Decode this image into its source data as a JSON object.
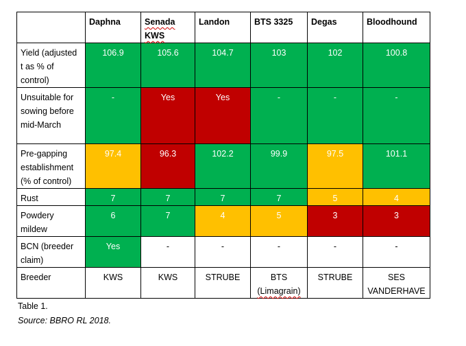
{
  "table": {
    "corner": "",
    "headers": [
      "Daphna",
      "Senada KWS",
      "Landon",
      "BTS 3325",
      "Degas",
      "Bloodhound"
    ],
    "rows": [
      {
        "label": "Yield (adjusted t as % of control)",
        "cells": [
          {
            "v": "106.9",
            "c": "green"
          },
          {
            "v": "105.6",
            "c": "green"
          },
          {
            "v": "104.7",
            "c": "green"
          },
          {
            "v": "103",
            "c": "green"
          },
          {
            "v": "102",
            "c": "green"
          },
          {
            "v": "100.8",
            "c": "green"
          }
        ]
      },
      {
        "label": "Unsuitable for sowing before mid-March",
        "cells": [
          {
            "v": "-",
            "c": "green"
          },
          {
            "v": "Yes",
            "c": "red"
          },
          {
            "v": "Yes",
            "c": "red"
          },
          {
            "v": "-",
            "c": "green"
          },
          {
            "v": "-",
            "c": "green"
          },
          {
            "v": "-",
            "c": "green"
          }
        ]
      },
      {
        "label": "Pre-gapping establishment (% of control)",
        "cells": [
          {
            "v": "97.4",
            "c": "amber"
          },
          {
            "v": "96.3",
            "c": "red"
          },
          {
            "v": "102.2",
            "c": "green"
          },
          {
            "v": "99.9",
            "c": "green"
          },
          {
            "v": "97.5",
            "c": "amber"
          },
          {
            "v": "101.1",
            "c": "green"
          }
        ]
      },
      {
        "label": "Rust",
        "cells": [
          {
            "v": "7",
            "c": "green"
          },
          {
            "v": "7",
            "c": "green"
          },
          {
            "v": "7",
            "c": "green"
          },
          {
            "v": "7",
            "c": "green"
          },
          {
            "v": "5",
            "c": "amber"
          },
          {
            "v": "4",
            "c": "amber"
          }
        ]
      },
      {
        "label": "Powdery mildew",
        "cells": [
          {
            "v": "6",
            "c": "green"
          },
          {
            "v": "7",
            "c": "green"
          },
          {
            "v": "4",
            "c": "amber"
          },
          {
            "v": "5",
            "c": "amber"
          },
          {
            "v": "3",
            "c": "red"
          },
          {
            "v": "3",
            "c": "red"
          }
        ]
      },
      {
        "label": "BCN (breeder claim)",
        "cells": [
          {
            "v": "Yes",
            "c": "green"
          },
          {
            "v": "-",
            "c": "plain"
          },
          {
            "v": "-",
            "c": "plain"
          },
          {
            "v": "-",
            "c": "plain"
          },
          {
            "v": "-",
            "c": "plain"
          },
          {
            "v": "-",
            "c": "plain"
          }
        ]
      },
      {
        "label": "Breeder",
        "cells": [
          {
            "v": "KWS",
            "c": "plain"
          },
          {
            "v": "KWS",
            "c": "plain"
          },
          {
            "v": "STRUBE",
            "c": "plain"
          },
          {
            "v": "BTS (Limagrain)",
            "c": "plain"
          },
          {
            "v": "STRUBE",
            "c": "plain"
          },
          {
            "v": "SES VANDERHAVE",
            "c": "plain"
          }
        ]
      }
    ]
  },
  "caption": {
    "title": "Table 1.",
    "source": "Source: BBRO RL 2018."
  },
  "colors": {
    "green": "#00b050",
    "red": "#c00000",
    "amber": "#ffc000",
    "spellcheck_underline": "#d00000"
  }
}
